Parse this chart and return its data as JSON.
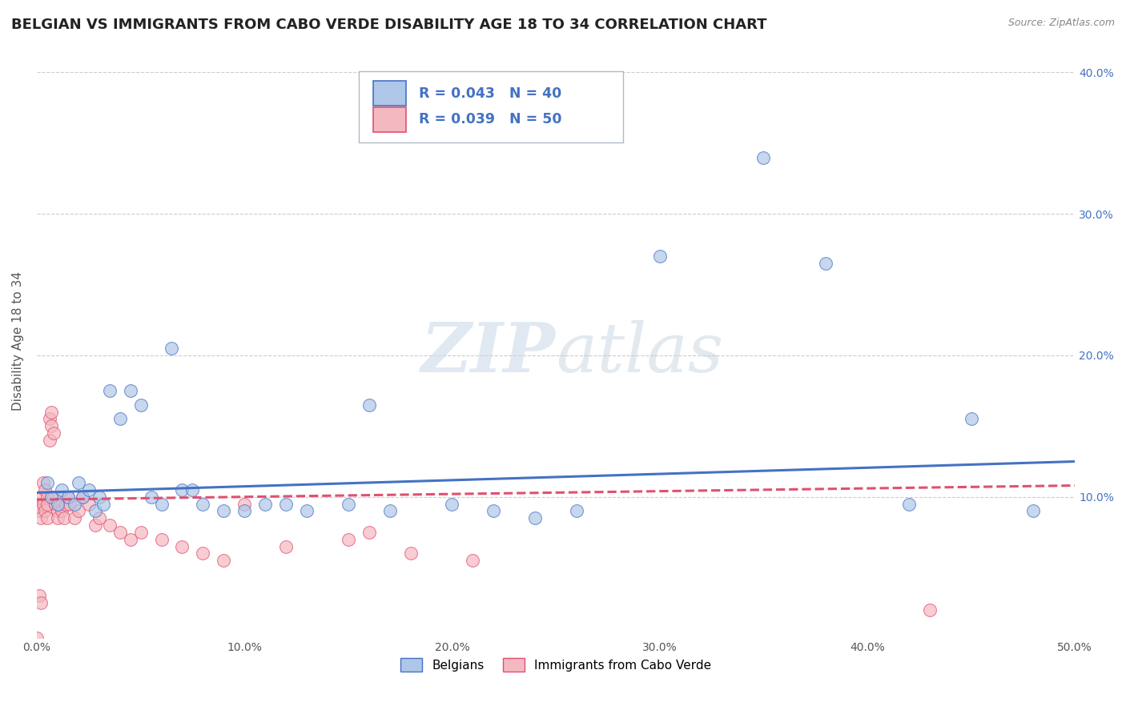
{
  "title": "BELGIAN VS IMMIGRANTS FROM CABO VERDE DISABILITY AGE 18 TO 34 CORRELATION CHART",
  "source": "Source: ZipAtlas.com",
  "ylabel": "Disability Age 18 to 34",
  "xlim": [
    0.0,
    0.5
  ],
  "ylim": [
    0.0,
    0.42
  ],
  "xticks": [
    0.0,
    0.1,
    0.2,
    0.3,
    0.4,
    0.5
  ],
  "yticks_right": [
    0.1,
    0.2,
    0.3,
    0.4
  ],
  "background_color": "#ffffff",
  "grid_color": "#c8c8c8",
  "belgian_R": 0.043,
  "belgian_N": 40,
  "belgian_color": "#aec6e8",
  "belgian_line_color": "#4472c4",
  "belgian_x": [
    0.005,
    0.007,
    0.01,
    0.012,
    0.015,
    0.018,
    0.02,
    0.022,
    0.025,
    0.028,
    0.03,
    0.032,
    0.035,
    0.04,
    0.045,
    0.05,
    0.055,
    0.06,
    0.065,
    0.07,
    0.075,
    0.08,
    0.09,
    0.1,
    0.11,
    0.12,
    0.13,
    0.15,
    0.16,
    0.17,
    0.2,
    0.22,
    0.24,
    0.26,
    0.3,
    0.35,
    0.38,
    0.42,
    0.45,
    0.48
  ],
  "belgian_y": [
    0.11,
    0.1,
    0.095,
    0.105,
    0.1,
    0.095,
    0.11,
    0.1,
    0.105,
    0.09,
    0.1,
    0.095,
    0.175,
    0.155,
    0.175,
    0.165,
    0.1,
    0.095,
    0.205,
    0.105,
    0.105,
    0.095,
    0.09,
    0.09,
    0.095,
    0.095,
    0.09,
    0.095,
    0.165,
    0.09,
    0.095,
    0.09,
    0.085,
    0.09,
    0.27,
    0.34,
    0.265,
    0.095,
    0.155,
    0.09
  ],
  "cabo_R": 0.039,
  "cabo_N": 50,
  "cabo_color": "#f4b8c1",
  "cabo_line_color": "#e05070",
  "cabo_x": [
    0.001,
    0.001,
    0.002,
    0.002,
    0.003,
    0.003,
    0.004,
    0.004,
    0.005,
    0.005,
    0.005,
    0.006,
    0.006,
    0.007,
    0.007,
    0.008,
    0.008,
    0.009,
    0.01,
    0.01,
    0.011,
    0.012,
    0.013,
    0.014,
    0.015,
    0.016,
    0.018,
    0.02,
    0.022,
    0.025,
    0.028,
    0.03,
    0.035,
    0.04,
    0.045,
    0.05,
    0.06,
    0.07,
    0.08,
    0.09,
    0.1,
    0.12,
    0.15,
    0.16,
    0.18,
    0.21,
    0.0,
    0.001,
    0.002,
    0.43
  ],
  "cabo_y": [
    0.095,
    0.09,
    0.1,
    0.085,
    0.11,
    0.095,
    0.105,
    0.09,
    0.085,
    0.1,
    0.095,
    0.14,
    0.155,
    0.15,
    0.16,
    0.145,
    0.1,
    0.095,
    0.09,
    0.085,
    0.095,
    0.09,
    0.085,
    0.095,
    0.1,
    0.095,
    0.085,
    0.09,
    0.1,
    0.095,
    0.08,
    0.085,
    0.08,
    0.075,
    0.07,
    0.075,
    0.07,
    0.065,
    0.06,
    0.055,
    0.095,
    0.065,
    0.07,
    0.075,
    0.06,
    0.055,
    0.0,
    0.03,
    0.025,
    0.02
  ],
  "legend_box_color_belgian": "#aec6e8",
  "legend_box_color_cabo": "#f4b8c1",
  "legend_text_color": "#4472c4",
  "legend_label_belgian": "Belgians",
  "legend_label_cabo": "Immigrants from Cabo Verde",
  "title_fontsize": 13,
  "axis_label_fontsize": 11,
  "tick_fontsize": 10,
  "blue_trend_x0": 0.0,
  "blue_trend_y0": 0.103,
  "blue_trend_x1": 0.5,
  "blue_trend_y1": 0.125,
  "pink_trend_x0": 0.0,
  "pink_trend_y0": 0.098,
  "pink_trend_x1": 0.5,
  "pink_trend_y1": 0.108
}
